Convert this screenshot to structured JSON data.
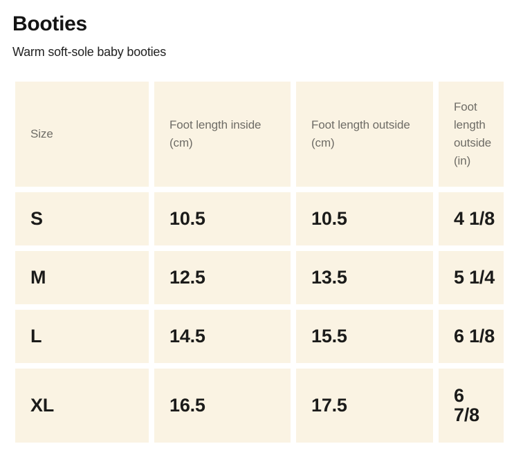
{
  "page": {
    "title": "Booties",
    "subtitle": "Warm soft-sole baby booties"
  },
  "table": {
    "columns": [
      "Size",
      "Foot length inside (cm)",
      "Foot length outside (cm)",
      "Foot length outside (in)"
    ],
    "rows": [
      {
        "size": "S",
        "inside_cm": "10.5",
        "outside_cm": "10.5",
        "outside_in": "4 1/8"
      },
      {
        "size": "M",
        "inside_cm": "12.5",
        "outside_cm": "13.5",
        "outside_in": "5 1/4"
      },
      {
        "size": "L",
        "inside_cm": "14.5",
        "outside_cm": "15.5",
        "outside_in": "6 1/8"
      },
      {
        "size": "XL",
        "inside_cm": "16.5",
        "outside_cm": "17.5",
        "outside_in": "6\n7/8"
      }
    ]
  },
  "colors": {
    "cell_background": "#FAF3E3",
    "header_text": "#6E6C66",
    "value_text": "#1B1B1A",
    "page_background": "#FFFFFF"
  }
}
